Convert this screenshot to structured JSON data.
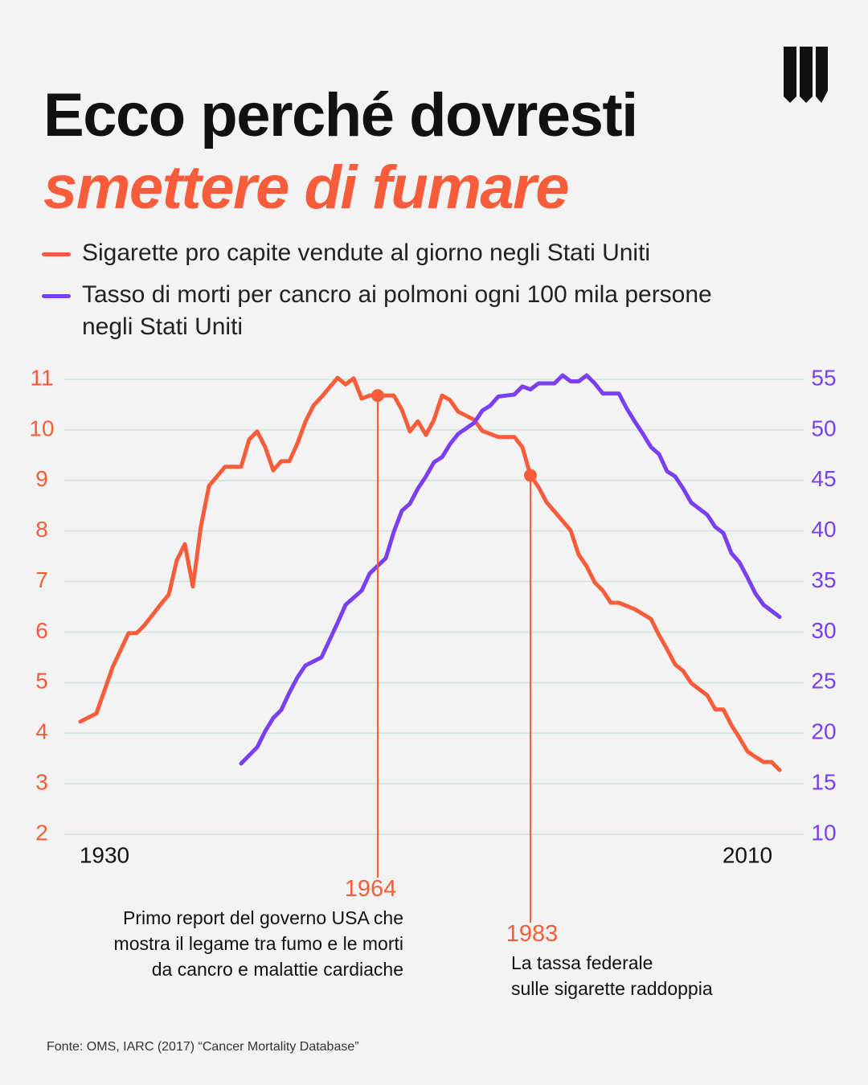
{
  "chart_data": {
    "type": "line",
    "title": "Ecco perché dovresti",
    "title_highlight": "smettere di fumare",
    "xlim": [
      1926,
      2016
    ],
    "xticks": [
      1930,
      2010
    ],
    "ylim": [
      2,
      11
    ],
    "yticks": [
      2,
      3,
      4,
      5,
      6,
      7,
      8,
      9,
      10,
      11
    ],
    "y2lim": [
      10,
      55
    ],
    "y2ticks": [
      10,
      15,
      20,
      25,
      30,
      35,
      40,
      45,
      50,
      55
    ],
    "grid": true,
    "series": [
      {
        "name": "Sigarette pro capite vendute al giorno negli Stati Uniti",
        "color": "#f75c3b",
        "axis": "y",
        "x": [
          1927,
          1929,
          1931,
          1933,
          1934,
          1935,
          1937,
          1938,
          1939,
          1940,
          1941,
          1942,
          1943,
          1945,
          1947,
          1948,
          1949,
          1950,
          1951,
          1952,
          1953,
          1954,
          1955,
          1956,
          1957,
          1959,
          1960,
          1961,
          1962,
          1963,
          1964,
          1966,
          1967,
          1968,
          1969,
          1970,
          1971,
          1972,
          1973,
          1974,
          1976,
          1977,
          1979,
          1981,
          1982,
          1983,
          1984,
          1985,
          1987,
          1988,
          1989,
          1990,
          1991,
          1992,
          1993,
          1994,
          1996,
          1998,
          1999,
          2000,
          2001,
          2002,
          2003,
          2005,
          2006,
          2007,
          2008,
          2009,
          2010,
          2011,
          2012,
          2013,
          2014
        ],
        "values": [
          4.23,
          4.39,
          5.3,
          5.98,
          5.98,
          6.14,
          6.55,
          6.74,
          7.42,
          7.74,
          6.9,
          8.09,
          8.89,
          9.27,
          9.27,
          9.81,
          9.97,
          9.66,
          9.2,
          9.38,
          9.38,
          9.73,
          10.16,
          10.48,
          10.65,
          11.03,
          10.9,
          11.02,
          10.62,
          10.68,
          10.68,
          10.68,
          10.4,
          9.97,
          10.17,
          9.9,
          10.2,
          10.68,
          10.59,
          10.36,
          10.2,
          9.98,
          9.86,
          9.86,
          9.66,
          9.1,
          8.87,
          8.57,
          8.2,
          8.01,
          7.53,
          7.3,
          6.98,
          6.82,
          6.58,
          6.58,
          6.45,
          6.26,
          5.94,
          5.66,
          5.36,
          5.23,
          4.99,
          4.75,
          4.47,
          4.47,
          4.16,
          3.91,
          3.64,
          3.53,
          3.43,
          3.43,
          3.27
        ]
      },
      {
        "name": "Tasso di morti per cancro ai polmoni ogni 100 mila persone negli Stati Uniti",
        "color": "#7b3ff2",
        "axis": "y2",
        "x": [
          1947,
          1949,
          1950,
          1951,
          1952,
          1953,
          1954,
          1955,
          1957,
          1958,
          1959,
          1960,
          1962,
          1963,
          1965,
          1966,
          1967,
          1968,
          1969,
          1970,
          1971,
          1972,
          1973,
          1974,
          1976,
          1977,
          1978,
          1979,
          1981,
          1982,
          1983,
          1984,
          1986,
          1987,
          1988,
          1989,
          1990,
          1991,
          1992,
          1994,
          1995,
          1996,
          1997,
          1998,
          1999,
          2000,
          2001,
          2002,
          2003,
          2005,
          2006,
          2007,
          2008,
          2009,
          2010,
          2011,
          2012,
          2014
        ],
        "values": [
          17.0,
          18.6,
          20.2,
          21.5,
          22.3,
          24.0,
          25.5,
          26.7,
          27.5,
          29.2,
          30.9,
          32.7,
          34.1,
          35.8,
          37.3,
          39.9,
          42.0,
          42.7,
          44.2,
          45.4,
          46.8,
          47.3,
          48.6,
          49.6,
          50.7,
          51.9,
          52.4,
          53.3,
          53.5,
          54.3,
          54.0,
          54.6,
          54.6,
          55.4,
          54.8,
          54.8,
          55.4,
          54.6,
          53.6,
          53.6,
          52.1,
          50.8,
          49.6,
          48.3,
          47.6,
          45.9,
          45.4,
          44.2,
          42.8,
          41.6,
          40.4,
          39.8,
          37.8,
          36.9,
          35.4,
          33.8,
          32.7,
          31.5
        ]
      }
    ],
    "annotations": [
      {
        "x": 1964,
        "text": [
          "Primo report del governo USA che",
          "mostra il legame tra fumo e le morti",
          "da cancro e malattie cardiache"
        ]
      },
      {
        "x": 1983,
        "text": [
          "La tassa federale",
          "sulle sigarette raddoppia"
        ]
      }
    ],
    "source": "Fonte: OMS, IARC (2017) “Cancer Mortality Database”"
  }
}
